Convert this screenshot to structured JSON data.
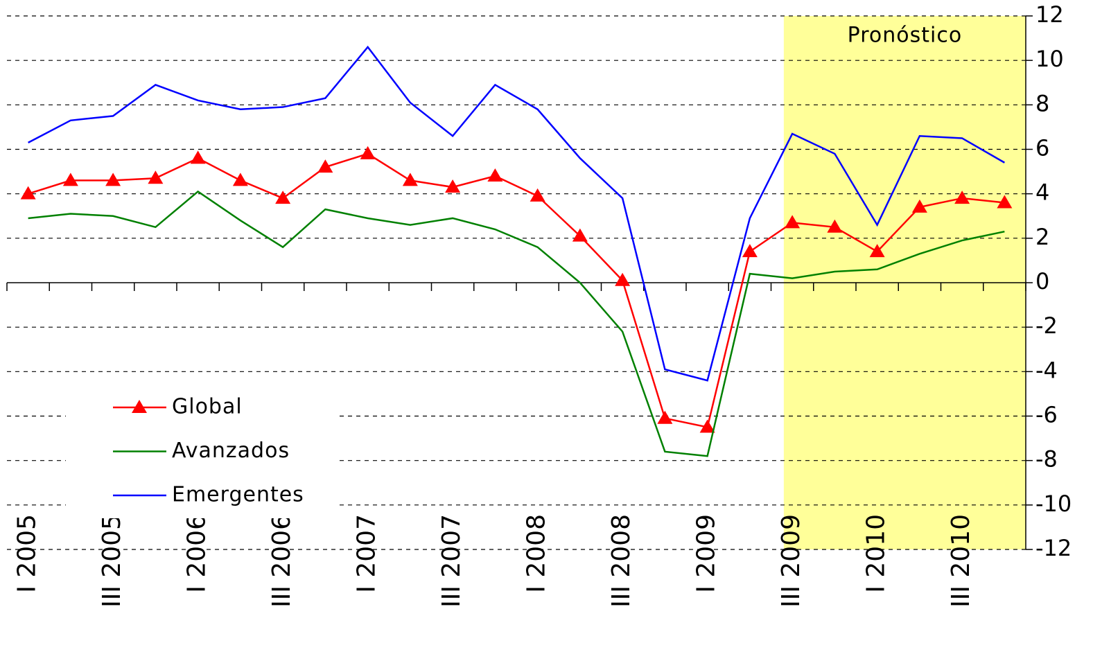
{
  "chart_data": {
    "type": "line",
    "categories": [
      "I 2005",
      null,
      "III 2005",
      null,
      "I 2006",
      null,
      "III 2006",
      null,
      "I 2007",
      null,
      "III 2007",
      null,
      "I 2008",
      null,
      "III 2008",
      null,
      "I 2009",
      null,
      "III 2009",
      null,
      "I 2010",
      null,
      "III 2010",
      null
    ],
    "series": [
      {
        "name": "Global",
        "color": "#ff0000",
        "marker": "triangle",
        "values": [
          4.0,
          4.6,
          4.6,
          4.7,
          5.6,
          4.6,
          3.8,
          5.2,
          5.8,
          4.6,
          4.3,
          4.8,
          3.9,
          2.1,
          0.1,
          -6.1,
          -6.5,
          1.4,
          2.7,
          2.5,
          1.4,
          3.4,
          3.8,
          3.6
        ]
      },
      {
        "name": "Avanzados",
        "color": "#008000",
        "values": [
          2.9,
          3.1,
          3.0,
          2.5,
          4.1,
          2.8,
          1.6,
          3.3,
          2.9,
          2.6,
          2.9,
          2.4,
          1.6,
          0.0,
          -2.2,
          -7.6,
          -7.8,
          0.4,
          0.2,
          0.5,
          0.6,
          1.3,
          1.9,
          2.3
        ]
      },
      {
        "name": "Emergentes",
        "color": "#0000ff",
        "values": [
          6.3,
          7.3,
          7.5,
          8.9,
          8.2,
          7.8,
          7.9,
          8.3,
          10.6,
          8.1,
          6.6,
          8.9,
          7.8,
          5.6,
          3.8,
          -3.9,
          -4.4,
          2.9,
          6.7,
          5.8,
          2.6,
          6.6,
          6.5,
          5.4
        ]
      }
    ],
    "annotation": {
      "text": "Pronóstico",
      "from_category": "III 2009",
      "color": "#ffff99"
    },
    "ylim": [
      -12,
      12
    ],
    "yticks": [
      -12,
      -10,
      -8,
      -6,
      -4,
      -2,
      0,
      2,
      4,
      6,
      8,
      10,
      12
    ],
    "grid": true,
    "legend": "left"
  }
}
